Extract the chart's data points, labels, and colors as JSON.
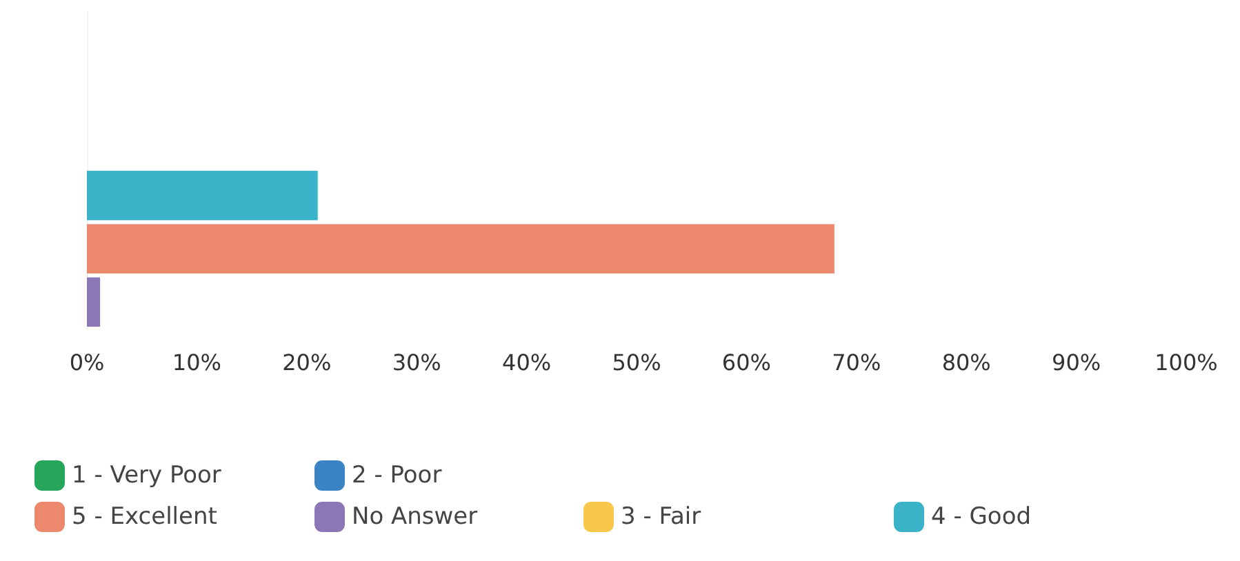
{
  "chart_data": {
    "type": "bar",
    "orientation": "horizontal",
    "categories": [
      null
    ],
    "series": [
      {
        "name": "1 - Very Poor",
        "color": "#26a65b",
        "values": [
          0
        ]
      },
      {
        "name": "2 - Poor",
        "color": "#3b84c4",
        "values": [
          0
        ]
      },
      {
        "name": "3 - Fair",
        "color": "#f7c84a",
        "values": [
          0
        ]
      },
      {
        "name": "4 - Good",
        "color": "#3ab3c9",
        "values": [
          21
        ]
      },
      {
        "name": "5 - Excellent",
        "color": "#ec886b",
        "values": [
          68
        ]
      },
      {
        "name": "No Answer",
        "color": "#8b76b6",
        "values": [
          1.2
        ]
      }
    ],
    "xlim": [
      0,
      100
    ],
    "xticks": [
      {
        "value": 0,
        "label": "0%"
      },
      {
        "value": 10,
        "label": "10%"
      },
      {
        "value": 20,
        "label": "20%"
      },
      {
        "value": 30,
        "label": "30%"
      },
      {
        "value": 40,
        "label": "40%"
      },
      {
        "value": 50,
        "label": "50%"
      },
      {
        "value": 60,
        "label": "60%"
      },
      {
        "value": 70,
        "label": "70%"
      },
      {
        "value": 80,
        "label": "80%"
      },
      {
        "value": 90,
        "label": "90%"
      },
      {
        "value": 100,
        "label": "100%"
      }
    ],
    "grid": false,
    "legend": "bottom left"
  }
}
